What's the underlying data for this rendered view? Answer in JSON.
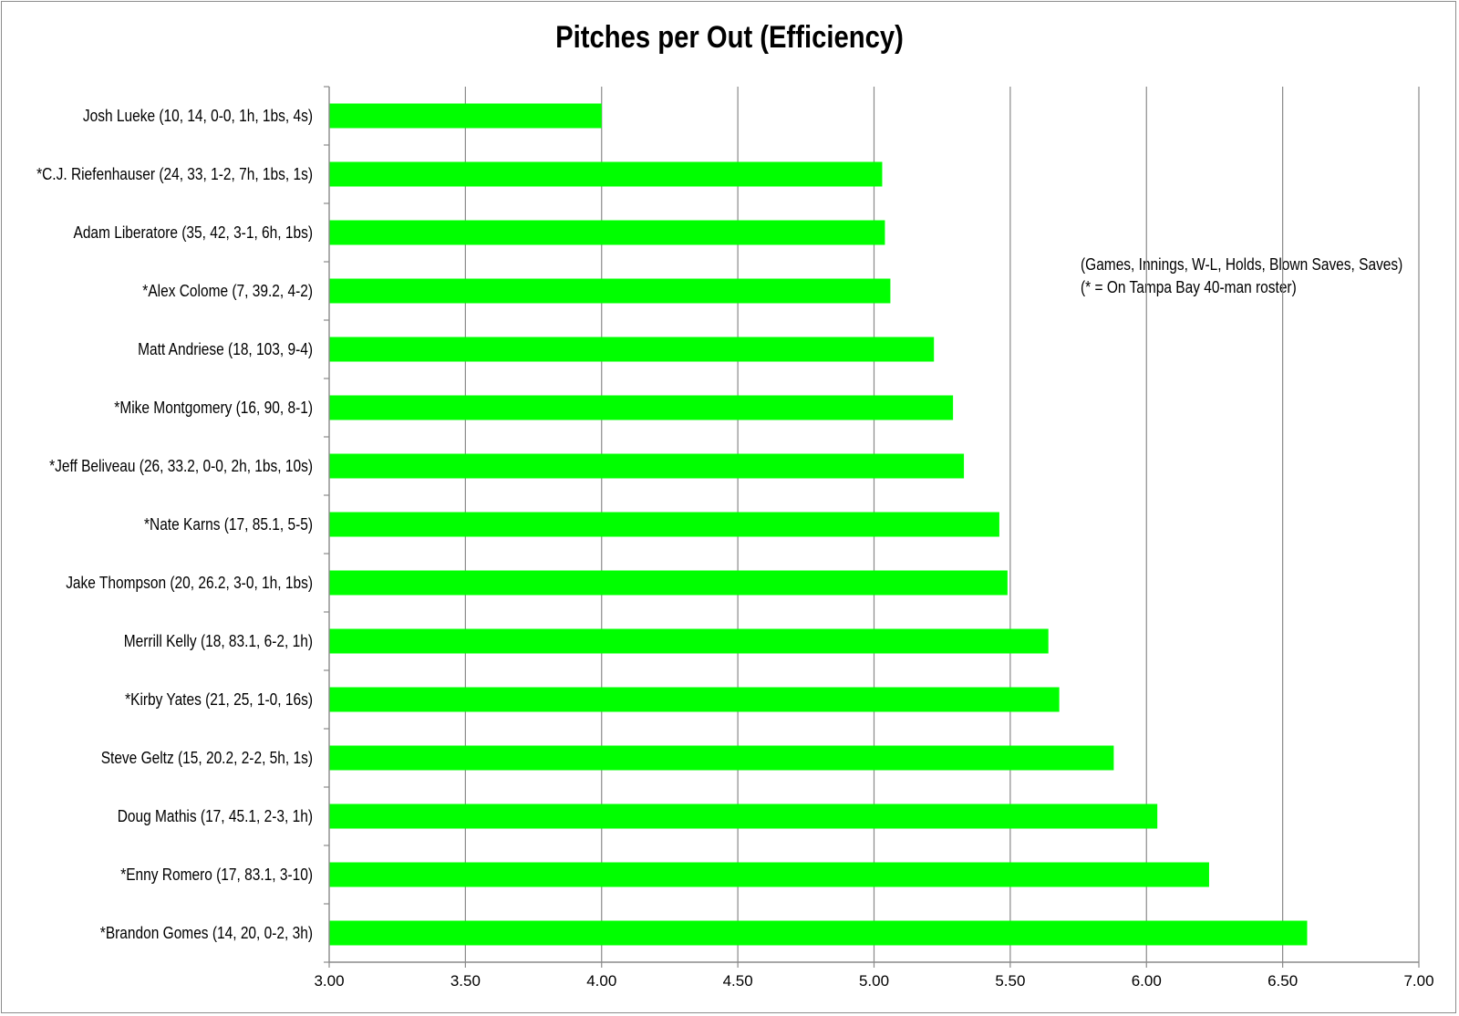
{
  "chart_data": {
    "type": "bar",
    "orientation": "horizontal",
    "title": "Pitches per Out (Efficiency)",
    "xlabel": "",
    "ylabel": "",
    "xlim": [
      3.0,
      7.0
    ],
    "x_ticks": [
      "3.00",
      "3.50",
      "4.00",
      "4.50",
      "5.00",
      "5.50",
      "6.00",
      "6.50",
      "7.00"
    ],
    "grid": "vertical",
    "bar_color": "#00ff00",
    "annotations": [
      "(Games, Innings, W-L, Holds, Blown Saves, Saves)",
      "(* = On Tampa Bay 40-man roster)"
    ],
    "categories": [
      "Josh Lueke (10, 14, 0-0, 1h, 1bs, 4s)",
      "*C.J. Riefenhauser (24, 33, 1-2, 7h, 1bs, 1s)",
      "Adam Liberatore (35, 42, 3-1, 6h, 1bs)",
      "*Alex Colome (7, 39.2, 4-2)",
      "Matt Andriese (18, 103, 9-4)",
      "*Mike Montgomery (16, 90, 8-1)",
      "*Jeff Beliveau (26, 33.2, 0-0, 2h, 1bs, 10s)",
      "*Nate Karns (17, 85.1, 5-5)",
      "Jake Thompson (20, 26.2, 3-0, 1h, 1bs)",
      "Merrill Kelly (18, 83.1, 6-2, 1h)",
      "*Kirby Yates (21, 25, 1-0, 16s)",
      "Steve Geltz (15, 20.2, 2-2, 5h, 1s)",
      "Doug Mathis (17, 45.1, 2-3, 1h)",
      "*Enny Romero (17, 83.1, 3-10)",
      "*Brandon Gomes (14, 20, 0-2, 3h)"
    ],
    "values": [
      4.0,
      5.03,
      5.04,
      5.06,
      5.22,
      5.29,
      5.33,
      5.46,
      5.49,
      5.64,
      5.68,
      5.88,
      6.04,
      6.23,
      6.59
    ]
  }
}
